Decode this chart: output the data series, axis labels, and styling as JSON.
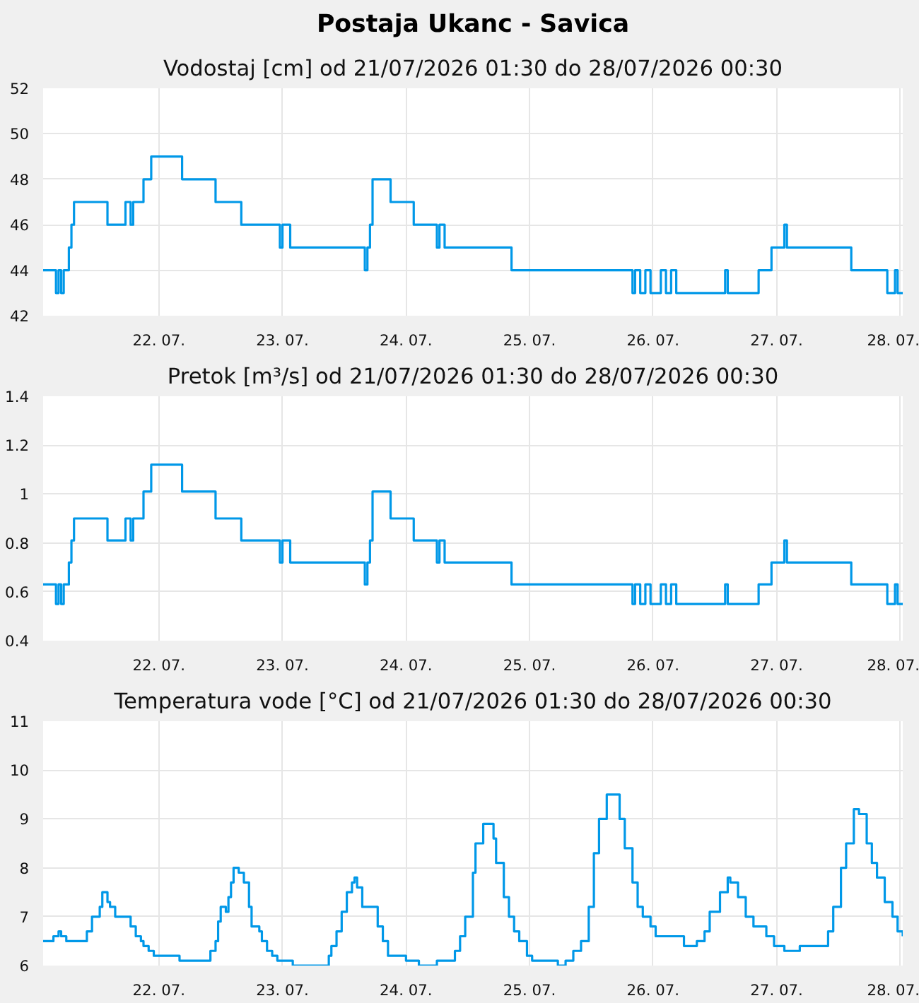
{
  "chart_data": [
    {
      "type": "step",
      "title": "Postaja Ukanc - Savica",
      "subtitle": "Vodostaj [cm] od 21/07/2026 01:30 do 28/07/2026 00:30",
      "grid": true,
      "marker": "none",
      "color": "#0098e8",
      "x": [
        "2026-07-21T01:30",
        "2026-07-21T04:00",
        "2026-07-21T04:30",
        "2026-07-21T05:00",
        "2026-07-21T05:30",
        "2026-07-21T06:30",
        "2026-07-21T07:00",
        "2026-07-21T07:30",
        "2026-07-21T14:00",
        "2026-07-21T17:30",
        "2026-07-21T18:30",
        "2026-07-21T19:00",
        "2026-07-21T21:00",
        "2026-07-21T22:30",
        "2026-07-22T04:30",
        "2026-07-22T11:00",
        "2026-07-22T16:00",
        "2026-07-22T23:30",
        "2026-07-23T00:00",
        "2026-07-23T01:30",
        "2026-07-23T16:00",
        "2026-07-23T16:30",
        "2026-07-23T17:00",
        "2026-07-23T17:30",
        "2026-07-23T21:00",
        "2026-07-24T01:30",
        "2026-07-24T06:00",
        "2026-07-24T06:30",
        "2026-07-24T07:30",
        "2026-07-24T20:30",
        "2026-07-25T20:00",
        "2026-07-25T20:30",
        "2026-07-25T21:30",
        "2026-07-25T22:30",
        "2026-07-25T23:30",
        "2026-07-26T01:30",
        "2026-07-26T02:30",
        "2026-07-26T03:30",
        "2026-07-26T04:30",
        "2026-07-26T14:00",
        "2026-07-26T14:30",
        "2026-07-26T20:30",
        "2026-07-26T23:00",
        "2026-07-27T01:30",
        "2026-07-27T02:00",
        "2026-07-27T14:30",
        "2026-07-27T21:30",
        "2026-07-27T23:00",
        "2026-07-27T23:30",
        "2026-07-28T00:30"
      ],
      "values": [
        44,
        43,
        44,
        43,
        44,
        45,
        46,
        47,
        46,
        47,
        46,
        47,
        48,
        49,
        48,
        47,
        46,
        45,
        46,
        45,
        44,
        45,
        46,
        48,
        47,
        46,
        45,
        46,
        45,
        44,
        43,
        44,
        43,
        44,
        43,
        44,
        43,
        44,
        43,
        44,
        43,
        44,
        45,
        46,
        45,
        44,
        43,
        44,
        43,
        43
      ],
      "xlim": [
        "2026-07-21T01:30",
        "2026-07-28T00:30"
      ],
      "ylim": [
        42,
        52
      ],
      "yticks": [
        42,
        44,
        46,
        48,
        50,
        52
      ],
      "xticks": [
        {
          "value": "2026-07-22",
          "label": "22. 07."
        },
        {
          "value": "2026-07-23",
          "label": "23. 07."
        },
        {
          "value": "2026-07-24",
          "label": "24. 07."
        },
        {
          "value": "2026-07-25",
          "label": "25. 07."
        },
        {
          "value": "2026-07-26",
          "label": "26. 07."
        },
        {
          "value": "2026-07-27",
          "label": "27. 07."
        },
        {
          "value": "2026-07-28",
          "label": "28. 07."
        }
      ]
    },
    {
      "type": "step",
      "title": "Pretok [m³/s] od 21/07/2026 01:30 do 28/07/2026 00:30",
      "grid": true,
      "marker": "none",
      "color": "#0098e8",
      "x": [
        "2026-07-21T01:30",
        "2026-07-21T04:00",
        "2026-07-21T04:30",
        "2026-07-21T05:00",
        "2026-07-21T05:30",
        "2026-07-21T06:30",
        "2026-07-21T07:00",
        "2026-07-21T07:30",
        "2026-07-21T14:00",
        "2026-07-21T17:30",
        "2026-07-21T18:30",
        "2026-07-21T19:00",
        "2026-07-21T21:00",
        "2026-07-21T22:30",
        "2026-07-22T04:30",
        "2026-07-22T11:00",
        "2026-07-22T16:00",
        "2026-07-22T23:30",
        "2026-07-23T00:00",
        "2026-07-23T01:30",
        "2026-07-23T16:00",
        "2026-07-23T16:30",
        "2026-07-23T17:00",
        "2026-07-23T17:30",
        "2026-07-23T21:00",
        "2026-07-24T01:30",
        "2026-07-24T06:00",
        "2026-07-24T06:30",
        "2026-07-24T07:30",
        "2026-07-24T20:30",
        "2026-07-25T20:00",
        "2026-07-25T20:30",
        "2026-07-25T21:30",
        "2026-07-25T22:30",
        "2026-07-25T23:30",
        "2026-07-26T01:30",
        "2026-07-26T02:30",
        "2026-07-26T03:30",
        "2026-07-26T04:30",
        "2026-07-26T14:00",
        "2026-07-26T14:30",
        "2026-07-26T20:30",
        "2026-07-26T23:00",
        "2026-07-27T01:30",
        "2026-07-27T02:00",
        "2026-07-27T14:30",
        "2026-07-27T21:30",
        "2026-07-27T23:00",
        "2026-07-27T23:30",
        "2026-07-28T00:30"
      ],
      "values": [
        0.63,
        0.55,
        0.63,
        0.55,
        0.63,
        0.72,
        0.81,
        0.9,
        0.81,
        0.9,
        0.81,
        0.9,
        1.01,
        1.12,
        1.01,
        0.9,
        0.81,
        0.72,
        0.81,
        0.72,
        0.63,
        0.72,
        0.81,
        1.01,
        0.9,
        0.81,
        0.72,
        0.81,
        0.72,
        0.63,
        0.55,
        0.63,
        0.55,
        0.63,
        0.55,
        0.63,
        0.55,
        0.63,
        0.55,
        0.63,
        0.55,
        0.63,
        0.72,
        0.81,
        0.72,
        0.63,
        0.55,
        0.63,
        0.55,
        0.55
      ],
      "xlim": [
        "2026-07-21T01:30",
        "2026-07-28T00:30"
      ],
      "ylim": [
        0.4,
        1.4
      ],
      "yticks": [
        0.4,
        0.6,
        0.8,
        1,
        1.2,
        1.4
      ],
      "xticks": [
        {
          "value": "2026-07-22",
          "label": "22. 07."
        },
        {
          "value": "2026-07-23",
          "label": "23. 07."
        },
        {
          "value": "2026-07-24",
          "label": "24. 07."
        },
        {
          "value": "2026-07-25",
          "label": "25. 07."
        },
        {
          "value": "2026-07-26",
          "label": "26. 07."
        },
        {
          "value": "2026-07-27",
          "label": "27. 07."
        },
        {
          "value": "2026-07-28",
          "label": "28. 07."
        }
      ]
    },
    {
      "type": "step",
      "title": "Temperatura vode [°C] od 21/07/2026 01:30 do 28/07/2026 00:30",
      "grid": true,
      "marker": "none",
      "color": "#0098e8",
      "x": [
        "2026-07-21T01:30",
        "2026-07-21T03:00",
        "2026-07-21T03:30",
        "2026-07-21T04:30",
        "2026-07-21T05:00",
        "2026-07-21T06:00",
        "2026-07-21T09:00",
        "2026-07-21T10:00",
        "2026-07-21T11:00",
        "2026-07-21T12:00",
        "2026-07-21T12:30",
        "2026-07-21T13:00",
        "2026-07-21T14:00",
        "2026-07-21T14:30",
        "2026-07-21T15:30",
        "2026-07-21T17:30",
        "2026-07-21T18:30",
        "2026-07-21T19:30",
        "2026-07-21T20:30",
        "2026-07-21T21:00",
        "2026-07-21T22:00",
        "2026-07-21T23:00",
        "2026-07-22T03:30",
        "2026-07-22T04:00",
        "2026-07-22T09:00",
        "2026-07-22T10:00",
        "2026-07-22T11:00",
        "2026-07-22T11:30",
        "2026-07-22T12:00",
        "2026-07-22T13:00",
        "2026-07-22T13:30",
        "2026-07-22T14:00",
        "2026-07-22T14:30",
        "2026-07-22T15:30",
        "2026-07-22T16:30",
        "2026-07-22T17:30",
        "2026-07-22T18:00",
        "2026-07-22T19:30",
        "2026-07-22T20:00",
        "2026-07-22T21:00",
        "2026-07-22T22:00",
        "2026-07-22T23:00",
        "2026-07-23T01:30",
        "2026-07-23T02:00",
        "2026-07-23T08:00",
        "2026-07-23T09:00",
        "2026-07-23T09:30",
        "2026-07-23T10:30",
        "2026-07-23T11:30",
        "2026-07-23T12:30",
        "2026-07-23T13:30",
        "2026-07-23T14:00",
        "2026-07-23T14:30",
        "2026-07-23T15:30",
        "2026-07-23T17:30",
        "2026-07-23T18:30",
        "2026-07-23T19:30",
        "2026-07-23T20:30",
        "2026-07-23T23:30",
        "2026-07-24T00:00",
        "2026-07-24T02:00",
        "2026-07-24T02:30",
        "2026-07-24T05:30",
        "2026-07-24T06:00",
        "2026-07-24T08:30",
        "2026-07-24T09:30",
        "2026-07-24T10:30",
        "2026-07-24T11:30",
        "2026-07-24T13:00",
        "2026-07-24T13:30",
        "2026-07-24T15:00",
        "2026-07-24T16:00",
        "2026-07-24T17:00",
        "2026-07-24T17:30",
        "2026-07-24T19:00",
        "2026-07-24T20:00",
        "2026-07-24T21:00",
        "2026-07-24T22:00",
        "2026-07-24T23:30",
        "2026-07-25T00:30",
        "2026-07-25T05:00",
        "2026-07-25T05:30",
        "2026-07-25T06:30",
        "2026-07-25T07:00",
        "2026-07-25T08:30",
        "2026-07-25T10:00",
        "2026-07-25T11:30",
        "2026-07-25T12:30",
        "2026-07-25T13:30",
        "2026-07-25T15:00",
        "2026-07-25T16:00",
        "2026-07-25T17:30",
        "2026-07-25T18:30",
        "2026-07-25T20:00",
        "2026-07-25T21:00",
        "2026-07-25T22:00",
        "2026-07-25T23:30",
        "2026-07-26T00:30",
        "2026-07-26T05:00",
        "2026-07-26T06:00",
        "2026-07-26T07:30",
        "2026-07-26T08:30",
        "2026-07-26T10:00",
        "2026-07-26T11:00",
        "2026-07-26T13:00",
        "2026-07-26T14:30",
        "2026-07-26T15:00",
        "2026-07-26T16:30",
        "2026-07-26T18:00",
        "2026-07-26T19:30",
        "2026-07-26T21:00",
        "2026-07-26T22:00",
        "2026-07-26T23:30",
        "2026-07-27T01:00",
        "2026-07-27T01:30",
        "2026-07-27T03:30",
        "2026-07-27T04:30",
        "2026-07-27T09:00",
        "2026-07-27T10:00",
        "2026-07-27T11:00",
        "2026-07-27T12:30",
        "2026-07-27T13:30",
        "2026-07-27T15:00",
        "2026-07-27T16:00",
        "2026-07-27T17:30",
        "2026-07-27T18:30",
        "2026-07-27T19:30",
        "2026-07-27T21:00",
        "2026-07-27T22:30",
        "2026-07-27T23:30",
        "2026-07-28T00:30"
      ],
      "values": [
        6.5,
        6.5,
        6.6,
        6.7,
        6.6,
        6.5,
        6.5,
        6.7,
        7.0,
        7.0,
        7.2,
        7.5,
        7.3,
        7.2,
        7.0,
        7.0,
        6.8,
        6.6,
        6.5,
        6.4,
        6.3,
        6.2,
        6.2,
        6.1,
        6.1,
        6.3,
        6.5,
        6.9,
        7.2,
        7.1,
        7.4,
        7.7,
        8.0,
        7.9,
        7.7,
        7.2,
        6.8,
        6.7,
        6.5,
        6.3,
        6.2,
        6.1,
        6.1,
        6.0,
        6.0,
        6.2,
        6.4,
        6.7,
        7.1,
        7.5,
        7.7,
        7.8,
        7.6,
        7.2,
        7.2,
        6.8,
        6.5,
        6.2,
        6.2,
        6.1,
        6.1,
        6.0,
        6.0,
        6.1,
        6.1,
        6.3,
        6.6,
        7.0,
        7.9,
        8.5,
        8.9,
        8.9,
        8.6,
        8.1,
        7.4,
        7.0,
        6.7,
        6.5,
        6.2,
        6.1,
        6.1,
        6.0,
        6.0,
        6.1,
        6.3,
        6.5,
        7.2,
        8.3,
        9.0,
        9.5,
        9.5,
        9.0,
        8.4,
        7.7,
        7.2,
        7.0,
        6.8,
        6.6,
        6.6,
        6.4,
        6.4,
        6.5,
        6.7,
        7.1,
        7.5,
        7.8,
        7.7,
        7.4,
        7.0,
        6.8,
        6.8,
        6.6,
        6.4,
        6.4,
        6.3,
        6.3,
        6.4,
        6.4,
        6.7,
        7.2,
        8.0,
        8.5,
        9.2,
        9.1,
        8.5,
        8.1,
        7.8,
        7.3,
        7.0,
        6.7,
        6.6
      ],
      "xlim": [
        "2026-07-21T01:30",
        "2026-07-28T00:30"
      ],
      "ylim": [
        6,
        11
      ],
      "yticks": [
        6,
        7,
        8,
        9,
        10,
        11
      ],
      "xticks": [
        {
          "value": "2026-07-22",
          "label": "22. 07."
        },
        {
          "value": "2026-07-23",
          "label": "23. 07."
        },
        {
          "value": "2026-07-24",
          "label": "24. 07."
        },
        {
          "value": "2026-07-25",
          "label": "25. 07."
        },
        {
          "value": "2026-07-26",
          "label": "26. 07."
        },
        {
          "value": "2026-07-27",
          "label": "27. 07."
        },
        {
          "value": "2026-07-28",
          "label": "28. 07."
        }
      ]
    }
  ]
}
